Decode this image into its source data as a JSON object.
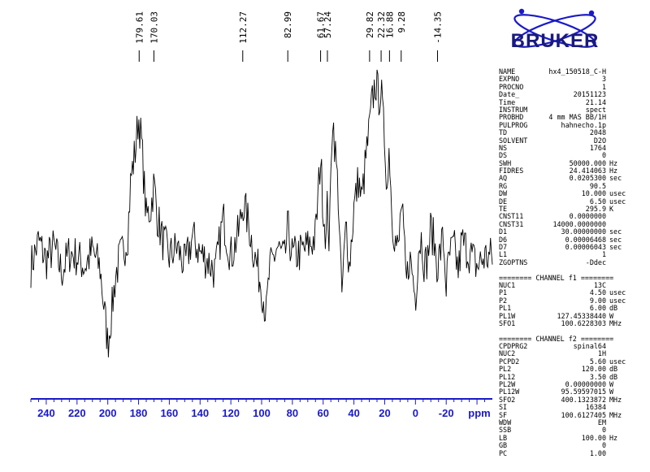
{
  "chart_data": {
    "type": "line",
    "xlabel": "ppm",
    "x_reversed": true,
    "xlim": [
      250,
      -50
    ],
    "xticks": [
      240,
      220,
      200,
      180,
      160,
      140,
      120,
      100,
      80,
      60,
      40,
      20,
      0,
      -20
    ],
    "xtick_labels": [
      "240",
      "220",
      "200",
      "180",
      "160",
      "140",
      "120",
      "100",
      "80",
      "60",
      "40",
      "20",
      "0",
      "-20"
    ],
    "peak_labels": [
      {
        "ppm": 179.61,
        "label": "179.61"
      },
      {
        "ppm": 170.03,
        "label": "170.03"
      },
      {
        "ppm": 112.27,
        "label": "112.27"
      },
      {
        "ppm": 82.99,
        "label": "82.99"
      },
      {
        "ppm": 61.67,
        "label": "61.67"
      },
      {
        "ppm": 57.24,
        "label": "57.24"
      },
      {
        "ppm": 29.82,
        "label": "29.82"
      },
      {
        "ppm": 22.32,
        "label": "22.32"
      },
      {
        "ppm": 16.88,
        "label": "16.88"
      },
      {
        "ppm": 9.28,
        "label": "9.28"
      },
      {
        "ppm": -14.35,
        "label": "-14.35"
      }
    ],
    "trace_color": "#000000",
    "axis_color": "#1a1ac8",
    "grid": false,
    "series": [
      {
        "x": [
          250,
          245,
          240,
          235,
          230,
          225,
          220,
          215,
          210,
          205,
          200,
          197,
          195,
          192,
          190,
          187,
          185,
          182,
          180,
          178,
          175,
          172,
          170,
          168,
          165,
          160,
          155,
          150,
          145,
          140,
          135,
          130,
          125,
          120,
          115,
          112,
          108,
          105,
          100,
          97,
          95,
          90,
          85,
          83,
          80,
          75,
          70,
          65,
          63,
          61.7,
          60,
          58,
          57.2,
          56,
          54,
          50,
          48,
          45,
          43,
          40,
          37,
          35,
          32,
          30,
          28,
          26,
          24,
          22.3,
          21,
          20,
          19,
          18,
          17,
          16.9,
          15,
          13,
          11,
          9.3,
          8,
          6,
          4,
          2,
          0,
          -2,
          -4,
          -6,
          -8,
          -10,
          -12,
          -14.4,
          -16,
          -18,
          -20,
          -22,
          -25,
          -28,
          -30,
          -35,
          -40,
          -45
        ],
        "y": [
          0.05,
          0.18,
          0.08,
          0.15,
          0.02,
          0.12,
          0.1,
          0.05,
          0.13,
          0.04,
          -0.35,
          -0.15,
          0.0,
          0.1,
          0.12,
          0.22,
          0.5,
          0.65,
          0.82,
          0.68,
          0.3,
          0.35,
          0.48,
          0.32,
          0.2,
          0.1,
          0.15,
          0.05,
          0.2,
          0.12,
          0.08,
          0.02,
          0.3,
          0.1,
          0.22,
          0.38,
          0.25,
          0.12,
          -0.05,
          -0.2,
          0.02,
          0.15,
          0.08,
          0.25,
          0.1,
          0.12,
          0.15,
          0.2,
          0.45,
          0.62,
          0.35,
          0.2,
          0.4,
          0.15,
          0.85,
          0.4,
          -0.12,
          0.28,
          0.05,
          0.35,
          0.5,
          0.38,
          0.62,
          0.75,
          0.9,
          1.0,
          0.92,
          0.95,
          0.78,
          0.7,
          0.55,
          0.4,
          0.82,
          0.6,
          0.3,
          0.18,
          0.12,
          0.38,
          0.25,
          -0.05,
          0.1,
          0.02,
          -0.12,
          0.15,
          0.2,
          0.05,
          0.1,
          0.25,
          0.18,
          0.05,
          0.12,
          0.2,
          -0.05,
          0.1,
          0.15,
          0.02,
          0.18,
          0.12,
          0.05,
          0.1
        ]
      }
    ]
  },
  "logo": {
    "text": "BRUKER",
    "color": "#1a1a7a"
  },
  "params_block1": [
    {
      "name": "NAME",
      "value": "hx4_150518_C-H",
      "unit": ""
    },
    {
      "name": "EXPNO",
      "value": "3",
      "unit": ""
    },
    {
      "name": "PROCNO",
      "value": "1",
      "unit": ""
    },
    {
      "name": "Date_",
      "value": "20151123",
      "unit": ""
    },
    {
      "name": "Time",
      "value": "21.14",
      "unit": ""
    },
    {
      "name": "INSTRUM",
      "value": "spect",
      "unit": ""
    },
    {
      "name": "PROBHD",
      "value": "4 mm MAS BB/1H",
      "unit": ""
    },
    {
      "name": "PULPROG",
      "value": "hahnecho.1p",
      "unit": ""
    },
    {
      "name": "TD",
      "value": "2048",
      "unit": ""
    },
    {
      "name": "SOLVENT",
      "value": "D2O",
      "unit": ""
    },
    {
      "name": "NS",
      "value": "1764",
      "unit": ""
    },
    {
      "name": "DS",
      "value": "0",
      "unit": ""
    },
    {
      "name": "SWH",
      "value": "50000.000",
      "unit": "Hz"
    },
    {
      "name": "FIDRES",
      "value": "24.414063",
      "unit": "Hz"
    },
    {
      "name": "AQ",
      "value": "0.0205300",
      "unit": "sec"
    },
    {
      "name": "RG",
      "value": "90.5",
      "unit": ""
    },
    {
      "name": "DW",
      "value": "10.000",
      "unit": "usec"
    },
    {
      "name": "DE",
      "value": "6.50",
      "unit": "usec"
    },
    {
      "name": "TE",
      "value": "295.9",
      "unit": "K"
    },
    {
      "name": "CNST11",
      "value": "0.0000000",
      "unit": ""
    },
    {
      "name": "CNST31",
      "value": "14000.0000000",
      "unit": ""
    },
    {
      "name": "D1",
      "value": "30.00000000",
      "unit": "sec"
    },
    {
      "name": "D6",
      "value": "0.00006468",
      "unit": "sec"
    },
    {
      "name": "D7",
      "value": "0.00006043",
      "unit": "sec"
    },
    {
      "name": "L1",
      "value": "1",
      "unit": ""
    },
    {
      "name": "ZGOPTNS",
      "value": "-Ddec",
      "unit": ""
    }
  ],
  "channel_f1_header": "======== CHANNEL f1 ========",
  "params_block2": [
    {
      "name": "NUC1",
      "value": "13C",
      "unit": ""
    },
    {
      "name": "P1",
      "value": "4.50",
      "unit": "usec"
    },
    {
      "name": "P2",
      "value": "9.00",
      "unit": "usec"
    },
    {
      "name": "PL1",
      "value": "6.00",
      "unit": "dB"
    },
    {
      "name": "PL1W",
      "value": "127.45338440",
      "unit": "W"
    },
    {
      "name": "SFO1",
      "value": "100.6228303",
      "unit": "MHz"
    }
  ],
  "channel_f2_header": "======== CHANNEL f2 ========",
  "params_block3": [
    {
      "name": "CPDPRG2",
      "value": "spinal64",
      "unit": ""
    },
    {
      "name": "NUC2",
      "value": "1H",
      "unit": ""
    },
    {
      "name": "PCPD2",
      "value": "5.60",
      "unit": "usec"
    },
    {
      "name": "PL2",
      "value": "120.00",
      "unit": "dB"
    },
    {
      "name": "PL12",
      "value": "3.50",
      "unit": "dB"
    },
    {
      "name": "PL2W",
      "value": "0.00000000",
      "unit": "W"
    },
    {
      "name": "PL12W",
      "value": "95.59597015",
      "unit": "W"
    },
    {
      "name": "SFO2",
      "value": "400.1323872",
      "unit": "MHz"
    },
    {
      "name": "SI",
      "value": "16384",
      "unit": ""
    },
    {
      "name": "SF",
      "value": "100.6127405",
      "unit": "MHz"
    },
    {
      "name": "WDW",
      "value": "EM",
      "unit": ""
    },
    {
      "name": "SSB",
      "value": "0",
      "unit": ""
    },
    {
      "name": "LB",
      "value": "100.00",
      "unit": "Hz"
    },
    {
      "name": "GB",
      "value": "0",
      "unit": ""
    },
    {
      "name": "PC",
      "value": "1.00",
      "unit": ""
    }
  ]
}
